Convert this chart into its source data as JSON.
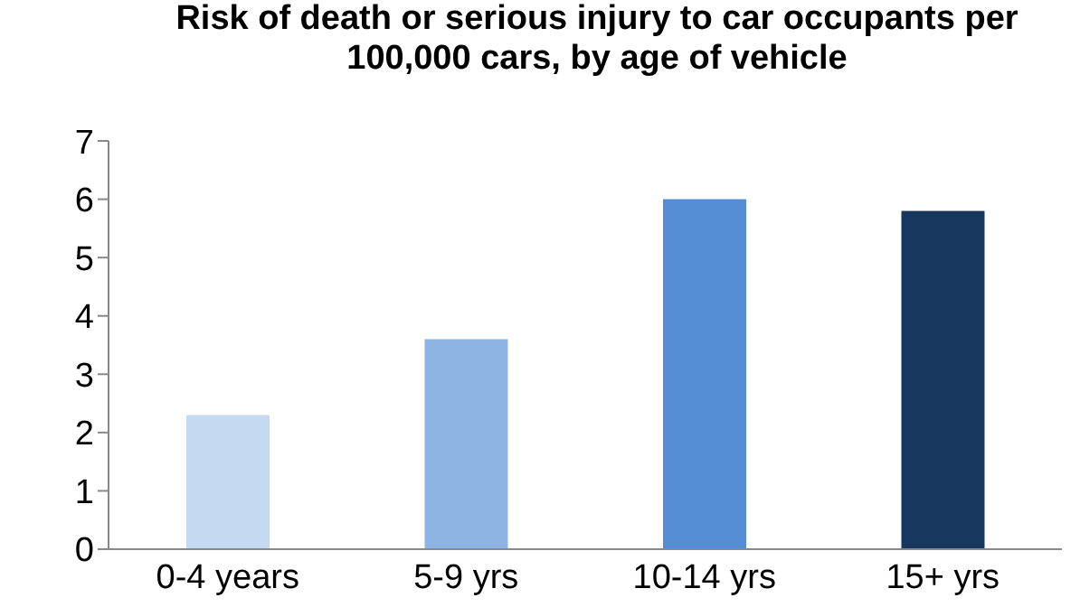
{
  "chart_data": {
    "type": "bar",
    "title": "Risk of death or serious injury to car occupants per 100,000 cars, by age of vehicle",
    "categories": [
      "0-4 years",
      "5-9 yrs",
      "10-14 yrs",
      "15+ yrs"
    ],
    "values": [
      2.3,
      3.6,
      6.0,
      5.8
    ],
    "colors": [
      "#c5d9f1",
      "#8eb4e3",
      "#558ed5",
      "#17375e"
    ],
    "ylim": [
      0,
      7
    ],
    "yticks": [
      0,
      1,
      2,
      3,
      4,
      5,
      6,
      7
    ],
    "grid": false,
    "legend": false
  }
}
